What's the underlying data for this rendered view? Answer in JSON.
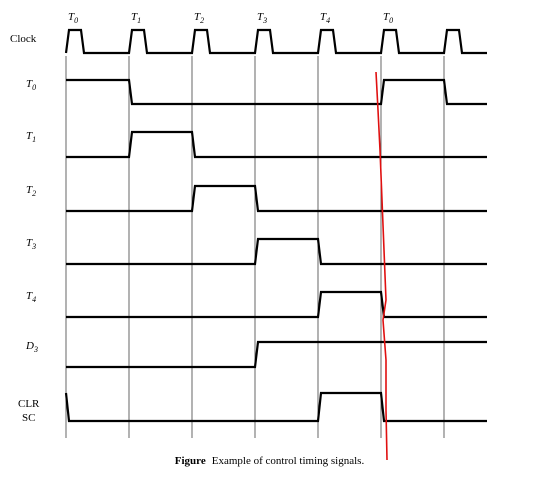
{
  "clock_label": "Clock",
  "top_labels": [
    {
      "name": "T",
      "sub": "0"
    },
    {
      "name": "T",
      "sub": "1"
    },
    {
      "name": "T",
      "sub": "2"
    },
    {
      "name": "T",
      "sub": "3"
    },
    {
      "name": "T",
      "sub": "4"
    },
    {
      "name": "T",
      "sub": "0"
    }
  ],
  "signals": [
    {
      "id": "t0",
      "name": "T",
      "sub": "0",
      "italic": true,
      "high_intervals": [
        [
          0,
          1
        ],
        [
          5,
          6
        ]
      ]
    },
    {
      "id": "t1",
      "name": "T",
      "sub": "1",
      "italic": true,
      "high_intervals": [
        [
          1,
          2
        ]
      ]
    },
    {
      "id": "t2",
      "name": "T",
      "sub": "2",
      "italic": true,
      "high_intervals": [
        [
          2,
          3
        ]
      ]
    },
    {
      "id": "t3",
      "name": "T",
      "sub": "3",
      "italic": true,
      "high_intervals": [
        [
          3,
          4
        ]
      ]
    },
    {
      "id": "t4",
      "name": "T",
      "sub": "4",
      "italic": true,
      "high_intervals": [
        [
          4,
          5
        ]
      ]
    },
    {
      "id": "d3",
      "name": "D",
      "sub": "3",
      "italic": true,
      "high_intervals": [
        [
          3,
          6.6
        ]
      ]
    },
    {
      "id": "clrsc",
      "name": "CLR",
      "name2": "SC",
      "italic": false,
      "high_intervals": [
        [
          -1,
          0
        ],
        [
          4,
          5
        ]
      ]
    }
  ],
  "caption": {
    "bold": "Figure",
    "text": "Example of control timing signals."
  },
  "colors": {
    "signal": "#000000",
    "gridline": "#000000",
    "annotation": "#e01010"
  }
}
